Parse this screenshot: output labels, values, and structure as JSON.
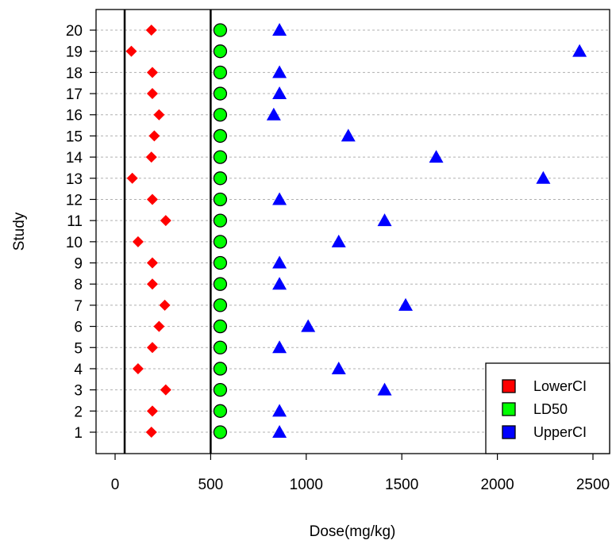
{
  "chart_data": {
    "type": "scatter",
    "title": "",
    "xlabel": "Dose(mg/kg)",
    "ylabel": "Study",
    "xlim": [
      -100,
      2600
    ],
    "ylim": [
      0,
      21
    ],
    "x_ticks": [
      "0",
      "500",
      "1000",
      "1500",
      "2000",
      "2500"
    ],
    "x_tick_values": [
      0,
      500,
      1000,
      1500,
      2000,
      2500
    ],
    "categories": [
      "1",
      "2",
      "3",
      "4",
      "5",
      "6",
      "7",
      "8",
      "9",
      "10",
      "11",
      "12",
      "13",
      "14",
      "15",
      "16",
      "17",
      "18",
      "19",
      "20"
    ],
    "reference_lines_x": [
      50,
      500
    ],
    "grid": "horizontal dashed",
    "legend_position": "bottom-right",
    "series": [
      {
        "name": "LowerCI",
        "color": "#ff0000",
        "marker": "diamond",
        "values": [
          190,
          195,
          265,
          120,
          195,
          230,
          260,
          195,
          195,
          120,
          265,
          195,
          90,
          190,
          205,
          230,
          195,
          195,
          85,
          190
        ]
      },
      {
        "name": "LD50",
        "color": "#00ff00",
        "marker": "circle",
        "values": [
          550,
          550,
          550,
          550,
          550,
          550,
          550,
          550,
          550,
          550,
          550,
          550,
          550,
          550,
          550,
          550,
          550,
          550,
          550,
          550
        ]
      },
      {
        "name": "UpperCI",
        "color": "#0000ff",
        "marker": "triangle",
        "values": [
          860,
          860,
          1410,
          1170,
          860,
          1010,
          1520,
          860,
          860,
          1170,
          1410,
          860,
          2240,
          1680,
          1220,
          830,
          860,
          860,
          2430,
          860
        ]
      }
    ]
  }
}
